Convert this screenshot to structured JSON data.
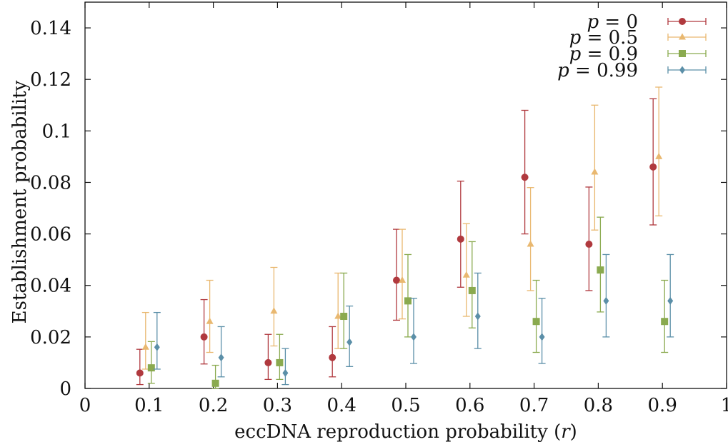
{
  "chart_data": {
    "type": "scatter",
    "title": "",
    "xlabel": "eccDNA reproduction probability (r)",
    "ylabel": "Establishment probability",
    "xlim": [
      0,
      1
    ],
    "ylim": [
      0,
      0.15
    ],
    "x_ticks": [
      "0",
      "0.1",
      "0.2",
      "0.3",
      "0.4",
      "0.5",
      "0.6",
      "0.7",
      "0.8",
      "0.9",
      "1"
    ],
    "y_ticks": [
      "0",
      "0.02",
      "0.04",
      "0.06",
      "0.08",
      "0.1",
      "0.12",
      "0.14"
    ],
    "grid": false,
    "legend_position": "top-right",
    "series": [
      {
        "name": "p = 0",
        "color": "#b0393e",
        "marker": "circle",
        "points": [
          {
            "x": 0.1,
            "y": 0.006,
            "low": 0.0015,
            "high": 0.0152
          },
          {
            "x": 0.2,
            "y": 0.02,
            "low": 0.0095,
            "high": 0.0345
          },
          {
            "x": 0.3,
            "y": 0.01,
            "low": 0.0035,
            "high": 0.021
          },
          {
            "x": 0.4,
            "y": 0.012,
            "low": 0.0045,
            "high": 0.024
          },
          {
            "x": 0.5,
            "y": 0.042,
            "low": 0.0265,
            "high": 0.0618
          },
          {
            "x": 0.6,
            "y": 0.058,
            "low": 0.0393,
            "high": 0.0805
          },
          {
            "x": 0.7,
            "y": 0.082,
            "low": 0.06,
            "high": 0.108
          },
          {
            "x": 0.8,
            "y": 0.056,
            "low": 0.038,
            "high": 0.0782
          },
          {
            "x": 0.9,
            "y": 0.086,
            "low": 0.0635,
            "high": 0.1125
          }
        ]
      },
      {
        "name": "p = 0.5",
        "color": "#e9b870",
        "marker": "triangle",
        "points": [
          {
            "x": 0.1,
            "y": 0.016,
            "low": 0.0075,
            "high": 0.0295
          },
          {
            "x": 0.2,
            "y": 0.026,
            "low": 0.014,
            "high": 0.042
          },
          {
            "x": 0.3,
            "y": 0.03,
            "low": 0.0165,
            "high": 0.047
          },
          {
            "x": 0.4,
            "y": 0.028,
            "low": 0.0155,
            "high": 0.0448
          },
          {
            "x": 0.5,
            "y": 0.042,
            "low": 0.027,
            "high": 0.0618
          },
          {
            "x": 0.6,
            "y": 0.044,
            "low": 0.028,
            "high": 0.064
          },
          {
            "x": 0.7,
            "y": 0.056,
            "low": 0.038,
            "high": 0.078
          },
          {
            "x": 0.8,
            "y": 0.084,
            "low": 0.0615,
            "high": 0.11
          },
          {
            "x": 0.9,
            "y": 0.09,
            "low": 0.067,
            "high": 0.117
          }
        ]
      },
      {
        "name": "p = 0.9",
        "color": "#8aaa4f",
        "marker": "square",
        "points": [
          {
            "x": 0.1,
            "y": 0.008,
            "low": 0.002,
            "high": 0.0182
          },
          {
            "x": 0.2,
            "y": 0.002,
            "low": 0.0,
            "high": 0.009
          },
          {
            "x": 0.3,
            "y": 0.01,
            "low": 0.0035,
            "high": 0.021
          },
          {
            "x": 0.4,
            "y": 0.028,
            "low": 0.0155,
            "high": 0.0448
          },
          {
            "x": 0.5,
            "y": 0.034,
            "low": 0.02,
            "high": 0.052
          },
          {
            "x": 0.6,
            "y": 0.038,
            "low": 0.0235,
            "high": 0.057
          },
          {
            "x": 0.7,
            "y": 0.026,
            "low": 0.014,
            "high": 0.042
          },
          {
            "x": 0.8,
            "y": 0.046,
            "low": 0.0297,
            "high": 0.0665
          },
          {
            "x": 0.9,
            "y": 0.026,
            "low": 0.014,
            "high": 0.042
          }
        ]
      },
      {
        "name": "p = 0.99",
        "color": "#5b8fa8",
        "marker": "diamond",
        "points": [
          {
            "x": 0.1,
            "y": 0.016,
            "low": 0.0075,
            "high": 0.0295
          },
          {
            "x": 0.2,
            "y": 0.012,
            "low": 0.0045,
            "high": 0.024
          },
          {
            "x": 0.3,
            "y": 0.006,
            "low": 0.0015,
            "high": 0.0155
          },
          {
            "x": 0.4,
            "y": 0.018,
            "low": 0.0085,
            "high": 0.032
          },
          {
            "x": 0.5,
            "y": 0.02,
            "low": 0.0097,
            "high": 0.035
          },
          {
            "x": 0.6,
            "y": 0.028,
            "low": 0.0155,
            "high": 0.0448
          },
          {
            "x": 0.7,
            "y": 0.02,
            "low": 0.0097,
            "high": 0.035
          },
          {
            "x": 0.8,
            "y": 0.034,
            "low": 0.02,
            "high": 0.052
          },
          {
            "x": 0.9,
            "y": 0.034,
            "low": 0.02,
            "high": 0.052
          }
        ]
      }
    ]
  }
}
